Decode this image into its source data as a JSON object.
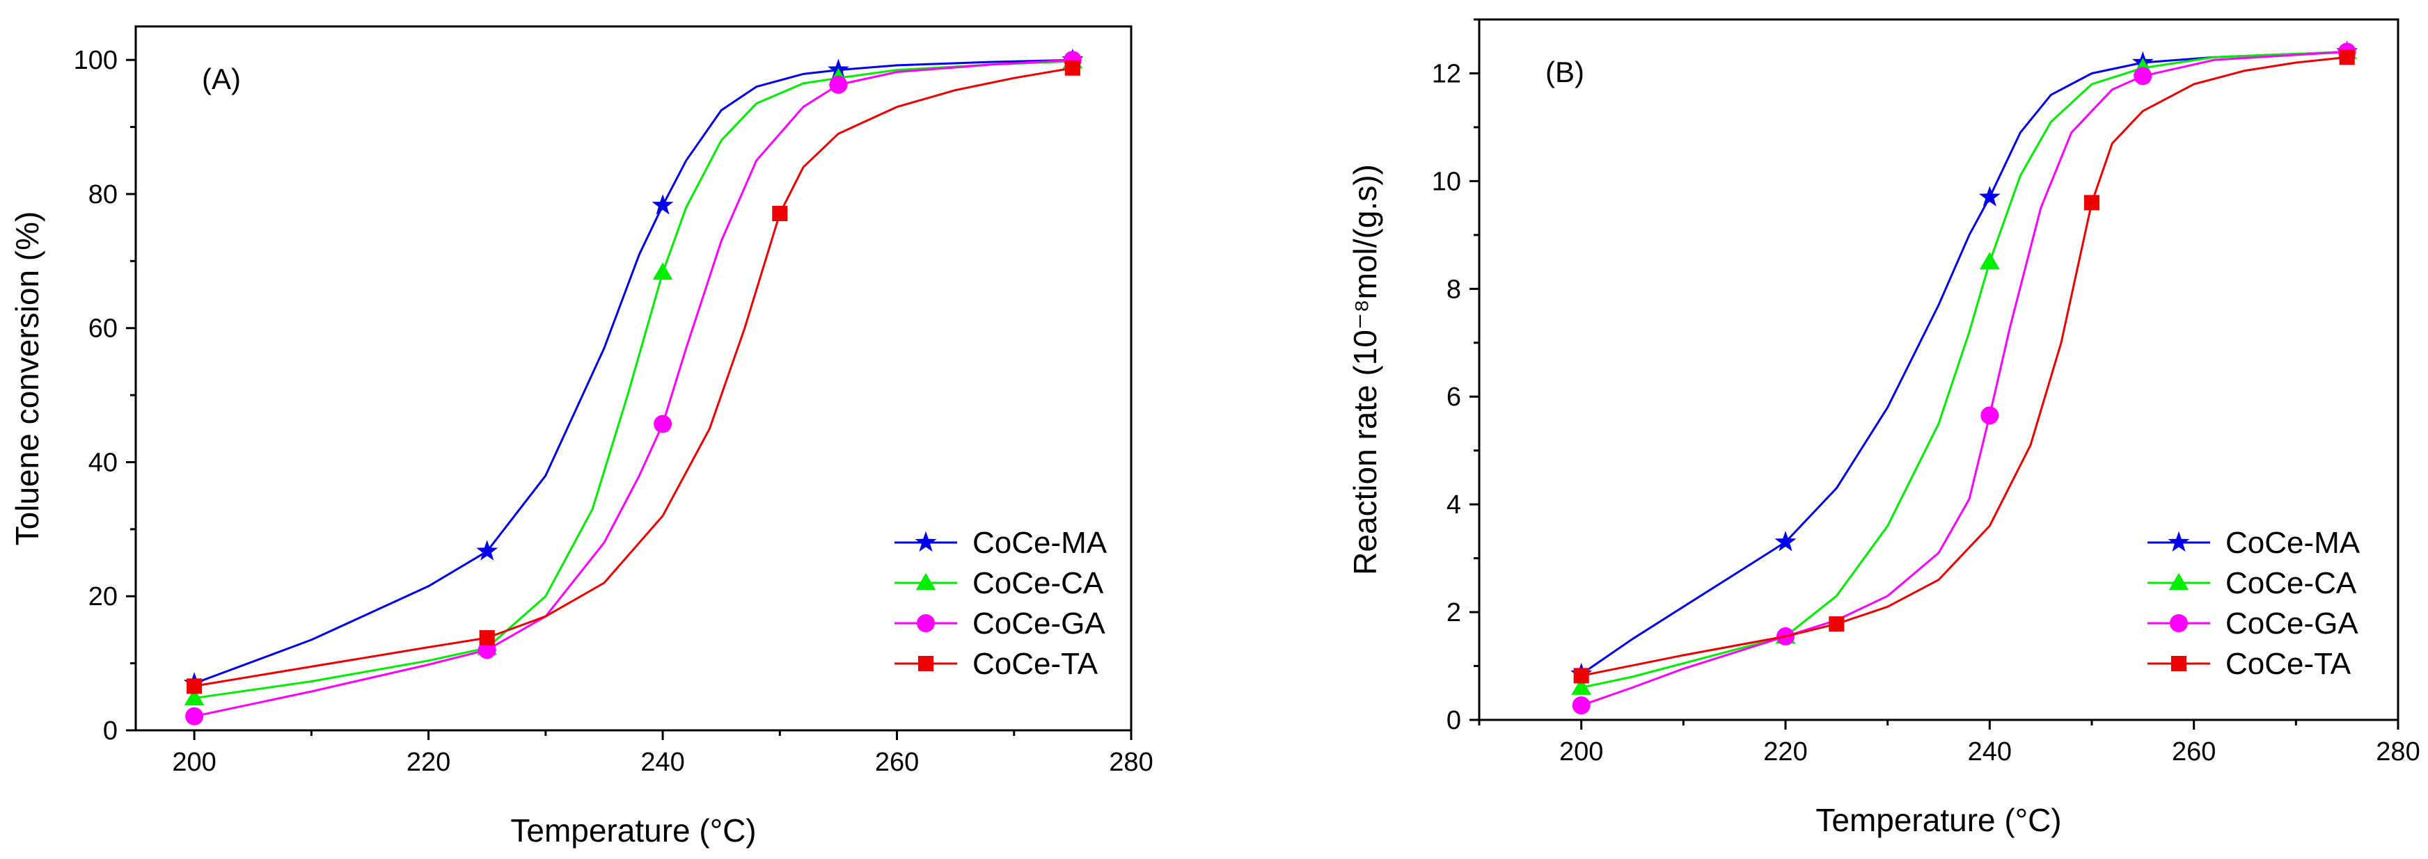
{
  "chart_data": [
    {
      "type": "line",
      "panel": "(A)",
      "xlabel": "Temperature (°C)",
      "ylabel": "Toluene conversion (%)",
      "xlim": [
        195,
        280
      ],
      "ylim": [
        0,
        105
      ],
      "xticks": [
        200,
        220,
        240,
        260,
        280
      ],
      "yticks": [
        0,
        20,
        40,
        60,
        80,
        100
      ],
      "legend_position": "bottom-right",
      "series": [
        {
          "name": "CoCe-MA",
          "color": "#0000ee",
          "marker": "star",
          "points": [
            [
              200,
              7.0
            ],
            [
              225,
              26.7
            ],
            [
              240,
              78.3
            ],
            [
              255,
              98.5
            ],
            [
              275,
              100.0
            ]
          ],
          "curve": [
            [
              200,
              7.0
            ],
            [
              210,
              13.5
            ],
            [
              220,
              21.5
            ],
            [
              225,
              26.7
            ],
            [
              230,
              38
            ],
            [
              235,
              57
            ],
            [
              238,
              71
            ],
            [
              240,
              78.3
            ],
            [
              242,
              85
            ],
            [
              245,
              92.5
            ],
            [
              248,
              96
            ],
            [
              252,
              97.9
            ],
            [
              255,
              98.5
            ],
            [
              260,
              99.2
            ],
            [
              268,
              99.7
            ],
            [
              275,
              100.0
            ]
          ]
        },
        {
          "name": "CoCe-CA",
          "color": "#00ee00",
          "marker": "triangle",
          "points": [
            [
              200,
              4.8
            ],
            [
              225,
              12.3
            ],
            [
              240,
              68.3
            ],
            [
              255,
              97.3
            ],
            [
              275,
              99.8
            ]
          ],
          "curve": [
            [
              200,
              4.8
            ],
            [
              210,
              7.3
            ],
            [
              220,
              10.4
            ],
            [
              225,
              12.3
            ],
            [
              230,
              20
            ],
            [
              234,
              33
            ],
            [
              237,
              50
            ],
            [
              240,
              68.3
            ],
            [
              242,
              78
            ],
            [
              245,
              88
            ],
            [
              248,
              93.5
            ],
            [
              252,
              96.5
            ],
            [
              255,
              97.3
            ],
            [
              260,
              98.5
            ],
            [
              268,
              99.3
            ],
            [
              275,
              99.8
            ]
          ]
        },
        {
          "name": "CoCe-GA",
          "color": "#ff00ff",
          "marker": "circle",
          "points": [
            [
              200,
              2.1
            ],
            [
              225,
              12.0
            ],
            [
              240,
              45.7
            ],
            [
              255,
              96.3
            ],
            [
              275,
              100.0
            ]
          ],
          "curve": [
            [
              200,
              2.1
            ],
            [
              210,
              5.8
            ],
            [
              220,
              9.8
            ],
            [
              225,
              12.0
            ],
            [
              230,
              17
            ],
            [
              235,
              28
            ],
            [
              238,
              38
            ],
            [
              240,
              45.7
            ],
            [
              242,
              57
            ],
            [
              245,
              73
            ],
            [
              248,
              85
            ],
            [
              252,
              93
            ],
            [
              255,
              96.3
            ],
            [
              260,
              98.2
            ],
            [
              268,
              99.3
            ],
            [
              275,
              100.0
            ]
          ]
        },
        {
          "name": "CoCe-TA",
          "color": "#ee0000",
          "marker": "square",
          "points": [
            [
              200,
              6.6
            ],
            [
              225,
              13.8
            ],
            [
              250,
              77.1
            ],
            [
              275,
              98.8
            ]
          ],
          "curve": [
            [
              200,
              6.6
            ],
            [
              210,
              9.5
            ],
            [
              220,
              12.4
            ],
            [
              225,
              13.8
            ],
            [
              230,
              17
            ],
            [
              235,
              22
            ],
            [
              240,
              32
            ],
            [
              244,
              45
            ],
            [
              247,
              60
            ],
            [
              250,
              77.1
            ],
            [
              252,
              84
            ],
            [
              255,
              89
            ],
            [
              260,
              93
            ],
            [
              265,
              95.5
            ],
            [
              270,
              97.3
            ],
            [
              275,
              98.8
            ]
          ]
        }
      ]
    },
    {
      "type": "line",
      "panel": "(B)",
      "xlabel": "Temperature (°C)",
      "ylabel": "Reaction rate (10⁻⁸mol/(g.s))",
      "xlim": [
        190,
        280
      ],
      "ylim": [
        0,
        13
      ],
      "xticks": [
        200,
        220,
        240,
        260,
        280
      ],
      "yticks": [
        0,
        2,
        4,
        6,
        8,
        10,
        12
      ],
      "legend_position": "bottom-right",
      "series": [
        {
          "name": "CoCe-MA",
          "color": "#0000ee",
          "marker": "star",
          "points": [
            [
              200,
              0.85
            ],
            [
              220,
              3.3
            ],
            [
              240,
              9.7
            ],
            [
              255,
              12.2
            ],
            [
              275,
              12.4
            ]
          ],
          "curve": [
            [
              200,
              0.85
            ],
            [
              205,
              1.5
            ],
            [
              210,
              2.1
            ],
            [
              215,
              2.7
            ],
            [
              220,
              3.3
            ],
            [
              225,
              4.3
            ],
            [
              230,
              5.8
            ],
            [
              235,
              7.7
            ],
            [
              238,
              9.0
            ],
            [
              240,
              9.7
            ],
            [
              243,
              10.9
            ],
            [
              246,
              11.6
            ],
            [
              250,
              12.0
            ],
            [
              255,
              12.2
            ],
            [
              262,
              12.3
            ],
            [
              275,
              12.4
            ]
          ]
        },
        {
          "name": "CoCe-CA",
          "color": "#00ee00",
          "marker": "triangle",
          "points": [
            [
              200,
              0.6
            ],
            [
              220,
              1.55
            ],
            [
              240,
              8.5
            ],
            [
              255,
              12.1
            ],
            [
              275,
              12.4
            ]
          ],
          "curve": [
            [
              200,
              0.6
            ],
            [
              205,
              0.8
            ],
            [
              210,
              1.05
            ],
            [
              215,
              1.3
            ],
            [
              220,
              1.55
            ],
            [
              225,
              2.3
            ],
            [
              230,
              3.6
            ],
            [
              235,
              5.5
            ],
            [
              238,
              7.2
            ],
            [
              240,
              8.5
            ],
            [
              243,
              10.1
            ],
            [
              246,
              11.1
            ],
            [
              250,
              11.8
            ],
            [
              255,
              12.1
            ],
            [
              262,
              12.3
            ],
            [
              275,
              12.4
            ]
          ]
        },
        {
          "name": "CoCe-GA",
          "color": "#ff00ff",
          "marker": "circle",
          "points": [
            [
              200,
              0.27
            ],
            [
              220,
              1.55
            ],
            [
              240,
              5.65
            ],
            [
              255,
              11.95
            ],
            [
              275,
              12.4
            ]
          ],
          "curve": [
            [
              200,
              0.27
            ],
            [
              205,
              0.6
            ],
            [
              210,
              0.95
            ],
            [
              215,
              1.25
            ],
            [
              220,
              1.55
            ],
            [
              225,
              1.85
            ],
            [
              230,
              2.3
            ],
            [
              235,
              3.1
            ],
            [
              238,
              4.1
            ],
            [
              240,
              5.65
            ],
            [
              242,
              7.3
            ],
            [
              245,
              9.5
            ],
            [
              248,
              10.9
            ],
            [
              252,
              11.7
            ],
            [
              255,
              11.95
            ],
            [
              262,
              12.25
            ],
            [
              275,
              12.4
            ]
          ]
        },
        {
          "name": "CoCe-TA",
          "color": "#ee0000",
          "marker": "square",
          "points": [
            [
              200,
              0.82
            ],
            [
              225,
              1.78
            ],
            [
              250,
              9.6
            ],
            [
              275,
              12.3
            ]
          ],
          "curve": [
            [
              200,
              0.82
            ],
            [
              210,
              1.2
            ],
            [
              220,
              1.55
            ],
            [
              225,
              1.78
            ],
            [
              230,
              2.1
            ],
            [
              235,
              2.6
            ],
            [
              240,
              3.6
            ],
            [
              244,
              5.1
            ],
            [
              247,
              7.0
            ],
            [
              250,
              9.6
            ],
            [
              252,
              10.7
            ],
            [
              255,
              11.3
            ],
            [
              260,
              11.8
            ],
            [
              265,
              12.05
            ],
            [
              270,
              12.2
            ],
            [
              275,
              12.3
            ]
          ]
        }
      ]
    }
  ]
}
